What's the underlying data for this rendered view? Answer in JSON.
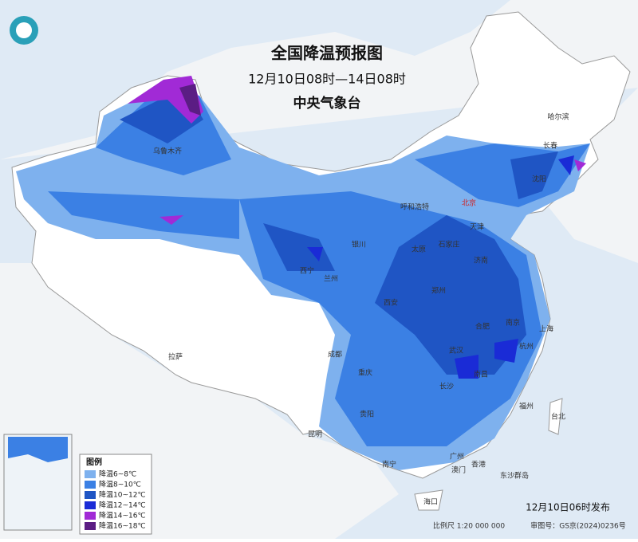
{
  "header": {
    "title": "全国降温预报图",
    "period": "12月10日08时—14日08时",
    "issuer": "中央气象台"
  },
  "legend": {
    "title": "图例",
    "items": [
      {
        "label": "降温6~8℃",
        "color": "#7eb1ee"
      },
      {
        "label": "降温8~10℃",
        "color": "#3b80e4"
      },
      {
        "label": "降温10~12℃",
        "color": "#1f55c4"
      },
      {
        "label": "降温12~14℃",
        "color": "#1a2bd6"
      },
      {
        "label": "降温14~16℃",
        "color": "#a12ad6"
      },
      {
        "label": "降温16~18℃",
        "color": "#5b1d84"
      }
    ]
  },
  "cities": [
    "乌鲁木齐",
    "哈尔滨",
    "长春",
    "沈阳",
    "呼和浩特",
    "北京",
    "天津",
    "石家庄",
    "太原",
    "济南",
    "银川",
    "西宁",
    "兰州",
    "西安",
    "郑州",
    "合肥",
    "南京",
    "上海",
    "杭州",
    "武汉",
    "南昌",
    "长沙",
    "成都",
    "重庆",
    "贵阳",
    "拉萨",
    "昆明",
    "福州",
    "台北",
    "南宁",
    "广州",
    "澳门",
    "香港",
    "海口",
    "东沙群岛"
  ],
  "footer": {
    "published": "12月10日06时发布",
    "scale": "比例尺 1:20 000 000",
    "map_number": "审图号：GS京(2024)0236号"
  }
}
